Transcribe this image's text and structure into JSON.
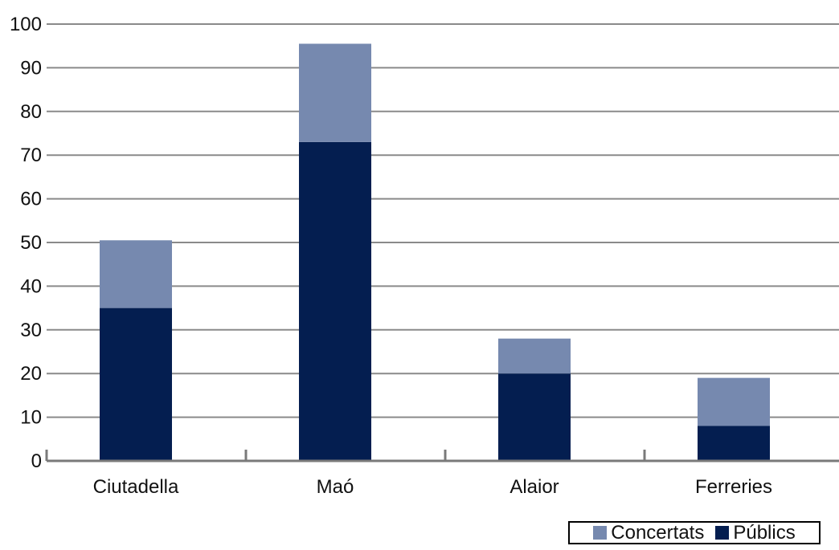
{
  "chart_data": {
    "type": "bar",
    "stacked": true,
    "categories": [
      "Ciutadella",
      "Maó",
      "Alaior",
      "Ferreries"
    ],
    "series": [
      {
        "name": "Públics",
        "values": [
          35,
          73,
          20,
          8
        ],
        "color": "#041e50"
      },
      {
        "name": "Concertats",
        "values": [
          15.5,
          22.5,
          8,
          11
        ],
        "color": "#7689af"
      }
    ],
    "ylim": [
      0,
      100
    ],
    "yticks": [
      0,
      10,
      20,
      30,
      40,
      50,
      60,
      70,
      80,
      90,
      100
    ],
    "grid": true,
    "legend_position": "bottom-right",
    "legend_order": [
      "Concertats",
      "Públics"
    ]
  }
}
